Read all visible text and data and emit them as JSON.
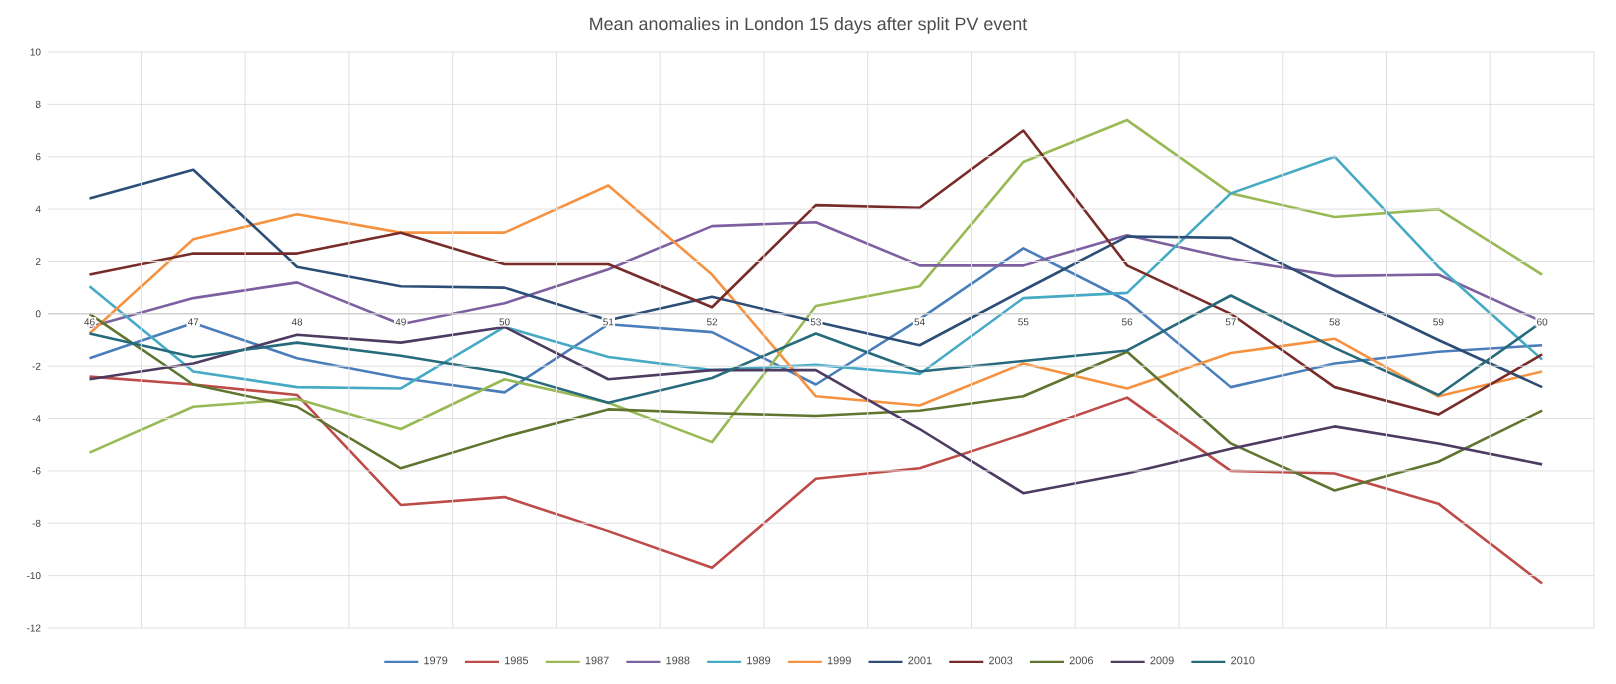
{
  "chart_data": {
    "type": "line",
    "title": "Mean anomalies in London 15 days after split PV event",
    "categories": [
      "46",
      "47",
      "48",
      "49",
      "50",
      "51",
      "52",
      "53",
      "54",
      "55",
      "56",
      "57",
      "58",
      "59",
      "60"
    ],
    "series": [
      {
        "name": "1979",
        "color": "#4a7ebb",
        "values": [
          -1.7,
          -0.35,
          -1.7,
          -2.45,
          -3.0,
          -0.4,
          -0.7,
          -2.7,
          -0.2,
          2.5,
          0.5,
          -2.8,
          -1.9,
          -1.45,
          -1.2
        ]
      },
      {
        "name": "1985",
        "color": "#be4b48",
        "values": [
          -2.4,
          -2.7,
          -3.1,
          -7.3,
          -7.0,
          -8.3,
          -9.7,
          -6.3,
          -5.9,
          -4.6,
          -3.2,
          -6.0,
          -6.1,
          -7.25,
          -10.3
        ]
      },
      {
        "name": "1987",
        "color": "#98b954",
        "values": [
          -5.3,
          -3.55,
          -3.25,
          -4.4,
          -2.5,
          -3.4,
          -4.9,
          0.3,
          1.05,
          5.8,
          7.4,
          4.6,
          3.7,
          4.0,
          1.5
        ]
      },
      {
        "name": "1988",
        "color": "#7d60a0",
        "values": [
          -0.5,
          0.6,
          1.2,
          -0.4,
          0.4,
          1.7,
          3.35,
          3.5,
          1.85,
          1.85,
          3.0,
          2.1,
          1.45,
          1.5,
          -0.3
        ]
      },
      {
        "name": "1989",
        "color": "#46aac5",
        "values": [
          1.05,
          -2.2,
          -2.8,
          -2.85,
          -0.5,
          -1.65,
          -2.15,
          -1.95,
          -2.3,
          0.6,
          0.8,
          4.6,
          6.0,
          1.8,
          -1.75
        ]
      },
      {
        "name": "1999",
        "color": "#f69240",
        "values": [
          -0.75,
          2.85,
          3.8,
          3.1,
          3.1,
          4.9,
          1.5,
          -3.15,
          -3.5,
          -1.9,
          -2.85,
          -1.5,
          -0.95,
          -3.15,
          -2.2
        ]
      },
      {
        "name": "2001",
        "color": "#2c4d75",
        "values": [
          4.4,
          5.5,
          1.8,
          1.05,
          1.0,
          -0.25,
          0.65,
          -0.3,
          -1.2,
          0.9,
          2.95,
          2.9,
          0.9,
          -1.0,
          -2.8
        ]
      },
      {
        "name": "2003",
        "color": "#772c2a",
        "values": [
          1.5,
          2.3,
          2.3,
          3.1,
          1.9,
          1.9,
          0.25,
          4.15,
          4.05,
          7.0,
          1.85,
          0.0,
          -2.8,
          -3.85,
          -1.55
        ]
      },
      {
        "name": "2006",
        "color": "#5f7530",
        "values": [
          0.0,
          -2.7,
          -3.55,
          -5.9,
          -4.7,
          -3.65,
          -3.8,
          -3.9,
          -3.7,
          -3.15,
          -1.45,
          -4.95,
          -6.75,
          -5.65,
          -3.7
        ]
      },
      {
        "name": "2009",
        "color": "#4d3b62",
        "values": [
          -2.5,
          -1.9,
          -0.8,
          -1.1,
          -0.5,
          -2.5,
          -2.15,
          -2.15,
          -4.4,
          -6.85,
          -6.1,
          -5.15,
          -4.3,
          -4.95,
          -5.75
        ]
      },
      {
        "name": "2010",
        "color": "#276a7c",
        "values": [
          -0.75,
          -1.65,
          -1.1,
          -1.6,
          -2.25,
          -3.4,
          -2.45,
          -0.75,
          -2.2,
          -1.8,
          -1.4,
          0.7,
          -1.3,
          -3.1,
          -0.3
        ]
      }
    ],
    "ylim": [
      -12,
      10
    ],
    "yticks": [
      -12,
      -10,
      -8,
      -6,
      -4,
      -2,
      0,
      2,
      4,
      6,
      8,
      10
    ],
    "grid": true,
    "legend": "bottom"
  }
}
